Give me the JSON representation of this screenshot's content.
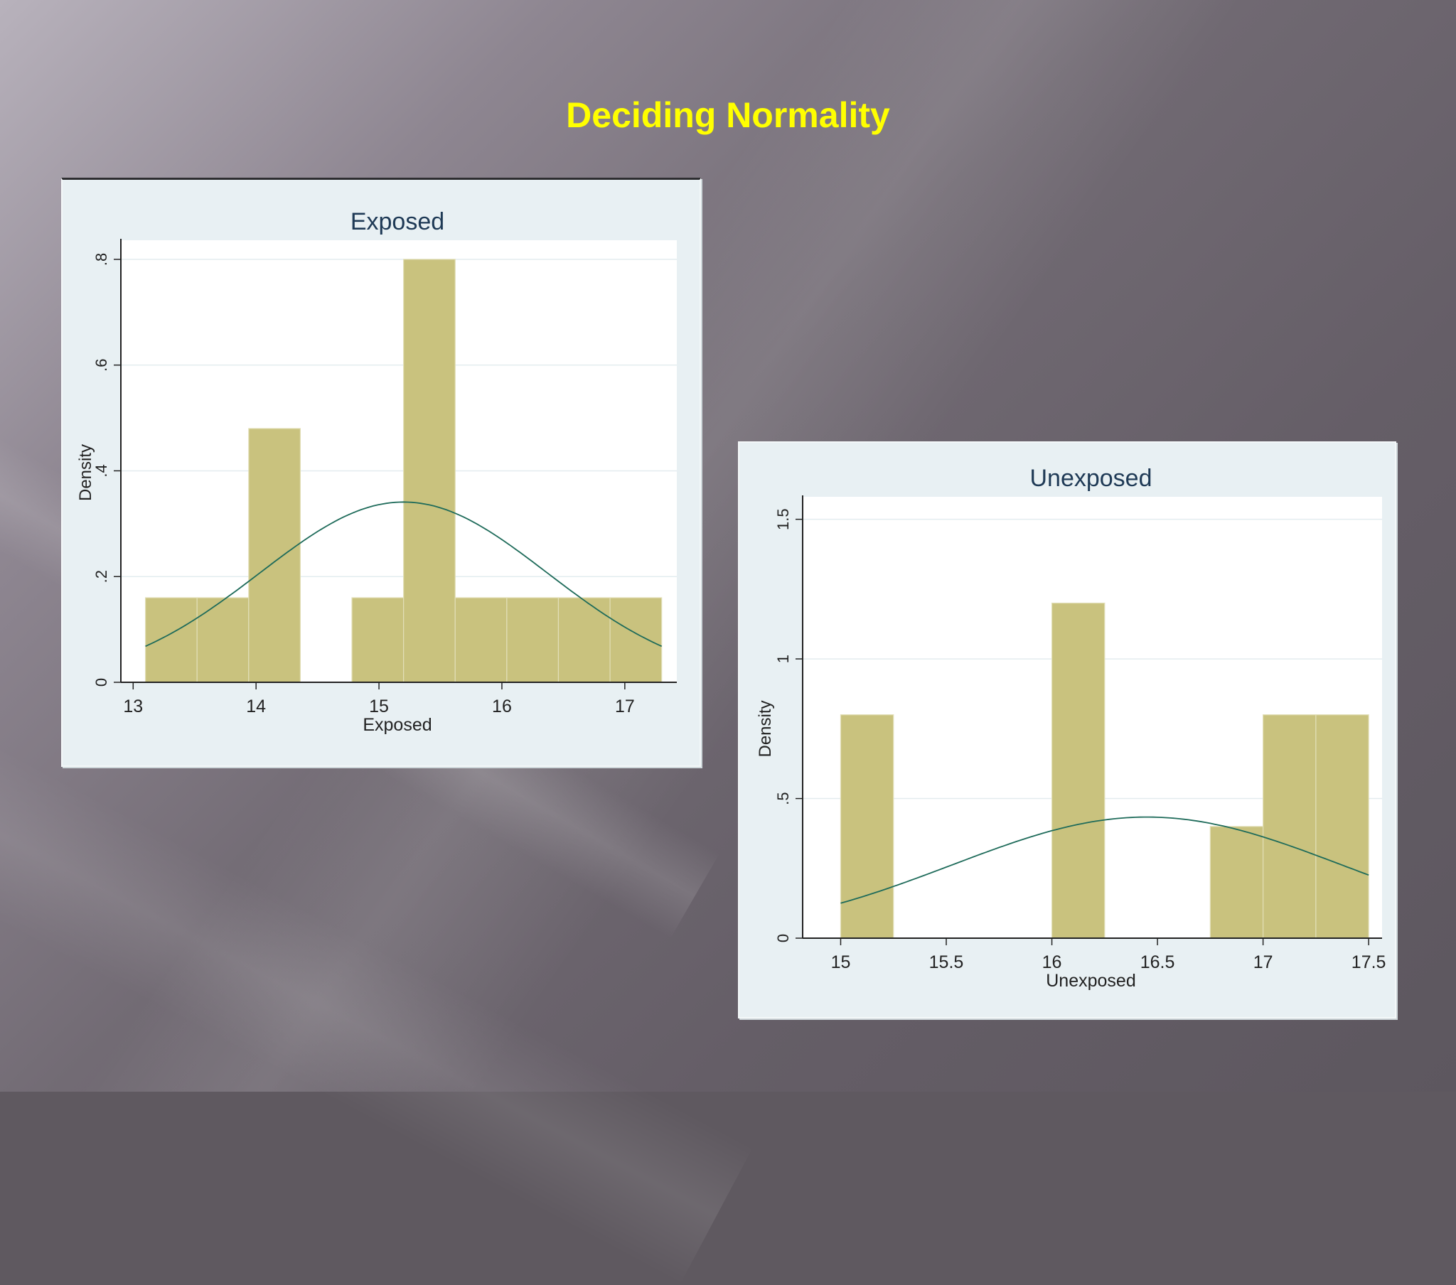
{
  "slide": {
    "title": "Deciding Normality"
  },
  "colors": {
    "title": "#ffff00",
    "bar": "#c9c27e",
    "curve": "#1e6b5a",
    "plot_bg": "#ffffff",
    "panel_bg": "#e8f0f3"
  },
  "chart_data": [
    {
      "type": "bar",
      "title": "Exposed",
      "xlabel": "Exposed",
      "ylabel": "Density",
      "xlim": [
        12.9,
        17.4
      ],
      "ylim": [
        0,
        0.82
      ],
      "xticks": [
        13,
        14,
        15,
        16,
        17
      ],
      "xtick_labels": [
        "13",
        "14",
        "15",
        "16",
        "17"
      ],
      "yticks": [
        0,
        0.2,
        0.4,
        0.6,
        0.8
      ],
      "ytick_labels": [
        "0",
        ".2",
        ".4",
        ".6",
        ".8"
      ],
      "bins": [
        {
          "x0": 13.1,
          "x1": 13.52,
          "y": 0.16
        },
        {
          "x0": 13.52,
          "x1": 13.94,
          "y": 0.16
        },
        {
          "x0": 13.94,
          "x1": 14.36,
          "y": 0.48
        },
        {
          "x0": 14.78,
          "x1": 15.2,
          "y": 0.16
        },
        {
          "x0": 15.2,
          "x1": 15.62,
          "y": 0.8
        },
        {
          "x0": 15.62,
          "x1": 16.04,
          "y": 0.16
        },
        {
          "x0": 16.04,
          "x1": 16.46,
          "y": 0.16
        },
        {
          "x0": 16.46,
          "x1": 16.88,
          "y": 0.16
        },
        {
          "x0": 16.88,
          "x1": 17.3,
          "y": 0.16
        }
      ],
      "normal_curve": {
        "mean": 15.2,
        "sd": 1.17,
        "x_range": [
          13.1,
          17.3
        ]
      },
      "grid": true
    },
    {
      "type": "bar",
      "title": "Unexposed",
      "xlabel": "Unexposed",
      "ylabel": "Density",
      "xlim": [
        14.82,
        17.55
      ],
      "ylim": [
        0,
        1.55
      ],
      "xticks": [
        15,
        15.5,
        16,
        16.5,
        17,
        17.5
      ],
      "xtick_labels": [
        "15",
        "15.5",
        "16",
        "16.5",
        "17",
        "17.5"
      ],
      "yticks": [
        0,
        0.5,
        1,
        1.5
      ],
      "ytick_labels": [
        "0",
        ".5",
        "1",
        "1.5"
      ],
      "bins": [
        {
          "x0": 15.0,
          "x1": 15.25,
          "y": 0.8
        },
        {
          "x0": 16.0,
          "x1": 16.25,
          "y": 1.2
        },
        {
          "x0": 16.75,
          "x1": 17.0,
          "y": 0.4
        },
        {
          "x0": 17.0,
          "x1": 17.25,
          "y": 0.8
        },
        {
          "x0": 17.25,
          "x1": 17.5,
          "y": 0.8
        }
      ],
      "normal_curve": {
        "mean": 16.45,
        "sd": 0.92,
        "x_range": [
          15.0,
          17.5
        ]
      },
      "grid": true
    }
  ]
}
